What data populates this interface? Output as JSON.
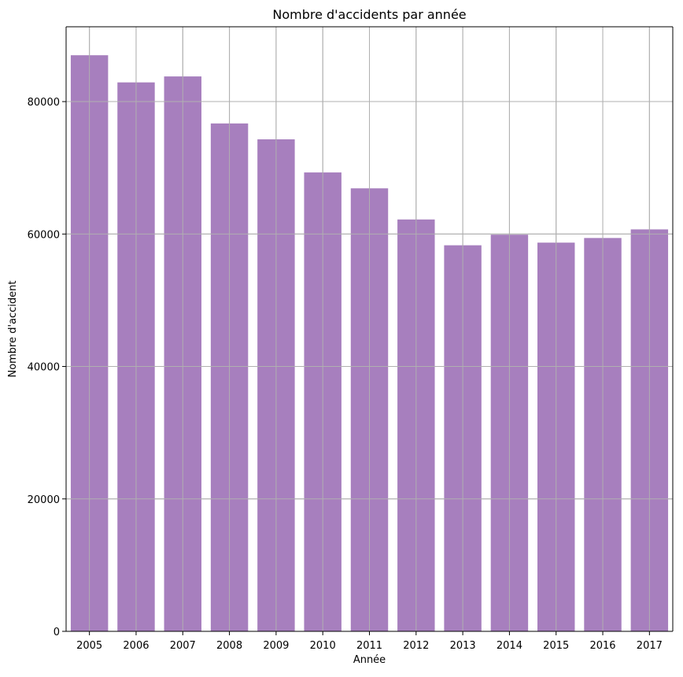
{
  "chart_data": {
    "type": "bar",
    "title": "Nombre d'accidents par année",
    "xlabel": "Année",
    "ylabel": "Nombre d'accident",
    "categories": [
      "2005",
      "2006",
      "2007",
      "2008",
      "2009",
      "2010",
      "2011",
      "2012",
      "2013",
      "2014",
      "2015",
      "2016",
      "2017"
    ],
    "values": [
      87000,
      82900,
      83800,
      76700,
      74300,
      69300,
      66900,
      62200,
      58300,
      59900,
      58700,
      59400,
      60700
    ],
    "ylim": [
      0,
      91300
    ],
    "yticks": [
      0,
      20000,
      40000,
      60000,
      80000
    ],
    "ytick_labels": [
      "0",
      "20000",
      "40000",
      "60000",
      "80000"
    ],
    "grid": true,
    "bar_color": "#a77fbe"
  }
}
